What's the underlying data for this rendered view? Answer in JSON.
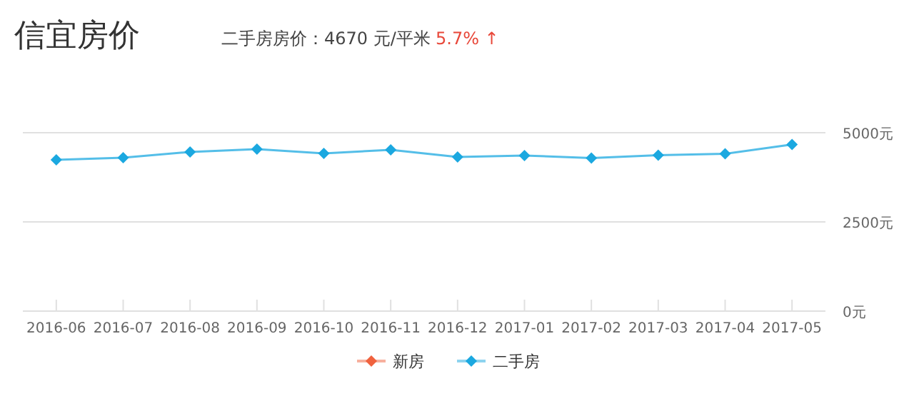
{
  "chart_data": {
    "type": "line",
    "title": "信宜房价",
    "subtitle": "二手房房价：4670 元/平米",
    "annotations": [
      "5.7% ↑"
    ],
    "categories": [
      "2016-06",
      "2016-07",
      "2016-08",
      "2016-09",
      "2016-10",
      "2016-11",
      "2016-12",
      "2017-01",
      "2017-02",
      "2017-03",
      "2017-04",
      "2017-05"
    ],
    "series": [
      {
        "name": "新房",
        "color": "#f0623e",
        "values": [
          null,
          null,
          null,
          null,
          null,
          null,
          null,
          null,
          null,
          null,
          null,
          null
        ]
      },
      {
        "name": "二手房",
        "color": "#1ba8e0",
        "values": [
          4240,
          4300,
          4460,
          4540,
          4420,
          4520,
          4320,
          4360,
          4290,
          4370,
          4410,
          4670
        ]
      }
    ],
    "ylim": [
      0,
      5000
    ],
    "yticks": [
      {
        "value": 0,
        "label": "0元"
      },
      {
        "value": 2500,
        "label": "2500元"
      },
      {
        "value": 5000,
        "label": "5000元"
      }
    ],
    "grid": "y",
    "legend": "bottom",
    "marker": "diamond",
    "line_style": "solid"
  }
}
